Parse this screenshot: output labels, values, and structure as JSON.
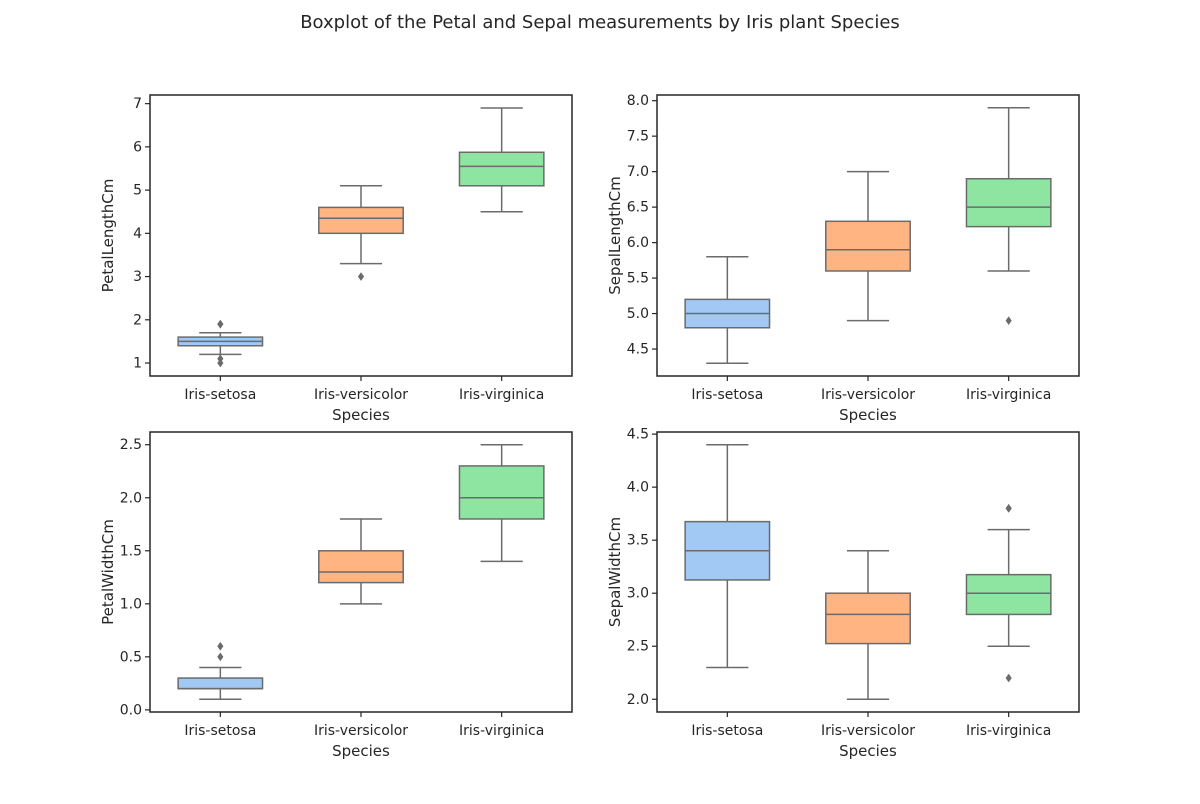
{
  "figure": {
    "title": "Boxplot of the Petal and Sepal measurements by Iris plant Species"
  },
  "colors": {
    "Iris-setosa": "#a1c9f4",
    "Iris-versicolor": "#ffb482",
    "Iris-virginica": "#8de5a1",
    "box_edge": "#6b6b6b",
    "axes_edge": "#262626"
  },
  "chart_data": [
    {
      "type": "box",
      "position": "top-left",
      "title": "",
      "xlabel": "Species",
      "ylabel": "PetalLengthCm",
      "categories": [
        "Iris-setosa",
        "Iris-versicolor",
        "Iris-virginica"
      ],
      "ylim": [
        0.7,
        7.2
      ],
      "yticks": [
        1,
        2,
        3,
        4,
        5,
        6,
        7
      ],
      "boxes": [
        {
          "category": "Iris-setosa",
          "whislo": 1.2,
          "q1": 1.4,
          "med": 1.5,
          "q3": 1.6,
          "whishi": 1.7,
          "fliers": [
            1.9,
            1.9,
            1.0,
            1.1
          ]
        },
        {
          "category": "Iris-versicolor",
          "whislo": 3.3,
          "q1": 4.0,
          "med": 4.35,
          "q3": 4.6,
          "whishi": 5.1,
          "fliers": [
            3.0
          ]
        },
        {
          "category": "Iris-virginica",
          "whislo": 4.5,
          "q1": 5.1,
          "med": 5.55,
          "q3": 5.875,
          "whishi": 6.9,
          "fliers": []
        }
      ]
    },
    {
      "type": "box",
      "position": "top-right",
      "title": "",
      "xlabel": "Species",
      "ylabel": "SepalLengthCm",
      "categories": [
        "Iris-setosa",
        "Iris-versicolor",
        "Iris-virginica"
      ],
      "ylim": [
        4.12,
        8.08
      ],
      "yticks": [
        4.5,
        5.0,
        5.5,
        6.0,
        6.5,
        7.0,
        7.5,
        8.0
      ],
      "boxes": [
        {
          "category": "Iris-setosa",
          "whislo": 4.3,
          "q1": 4.8,
          "med": 5.0,
          "q3": 5.2,
          "whishi": 5.8,
          "fliers": []
        },
        {
          "category": "Iris-versicolor",
          "whislo": 4.9,
          "q1": 5.6,
          "med": 5.9,
          "q3": 6.3,
          "whishi": 7.0,
          "fliers": []
        },
        {
          "category": "Iris-virginica",
          "whislo": 5.6,
          "q1": 6.225,
          "med": 6.5,
          "q3": 6.9,
          "whishi": 7.9,
          "fliers": [
            4.9
          ]
        }
      ]
    },
    {
      "type": "box",
      "position": "bottom-left",
      "title": "",
      "xlabel": "Species",
      "ylabel": "PetalWidthCm",
      "categories": [
        "Iris-setosa",
        "Iris-versicolor",
        "Iris-virginica"
      ],
      "ylim": [
        -0.02,
        2.62
      ],
      "yticks": [
        0.0,
        0.5,
        1.0,
        1.5,
        2.0,
        2.5
      ],
      "boxes": [
        {
          "category": "Iris-setosa",
          "whislo": 0.1,
          "q1": 0.2,
          "med": 0.2,
          "q3": 0.3,
          "whishi": 0.4,
          "fliers": [
            0.5,
            0.6
          ]
        },
        {
          "category": "Iris-versicolor",
          "whislo": 1.0,
          "q1": 1.2,
          "med": 1.3,
          "q3": 1.5,
          "whishi": 1.8,
          "fliers": []
        },
        {
          "category": "Iris-virginica",
          "whislo": 1.4,
          "q1": 1.8,
          "med": 2.0,
          "q3": 2.3,
          "whishi": 2.5,
          "fliers": []
        }
      ]
    },
    {
      "type": "box",
      "position": "bottom-right",
      "title": "",
      "xlabel": "Species",
      "ylabel": "SepalWidthCm",
      "categories": [
        "Iris-setosa",
        "Iris-versicolor",
        "Iris-virginica"
      ],
      "ylim": [
        1.88,
        4.52
      ],
      "yticks": [
        2.0,
        2.5,
        3.0,
        3.5,
        4.0,
        4.5
      ],
      "boxes": [
        {
          "category": "Iris-setosa",
          "whislo": 2.3,
          "q1": 3.125,
          "med": 3.4,
          "q3": 3.675,
          "whishi": 4.4,
          "fliers": []
        },
        {
          "category": "Iris-versicolor",
          "whislo": 2.0,
          "q1": 2.525,
          "med": 2.8,
          "q3": 3.0,
          "whishi": 3.4,
          "fliers": []
        },
        {
          "category": "Iris-virginica",
          "whislo": 2.5,
          "q1": 2.8,
          "med": 3.0,
          "q3": 3.175,
          "whishi": 3.6,
          "fliers": [
            3.8,
            3.8,
            2.2
          ]
        }
      ]
    }
  ]
}
